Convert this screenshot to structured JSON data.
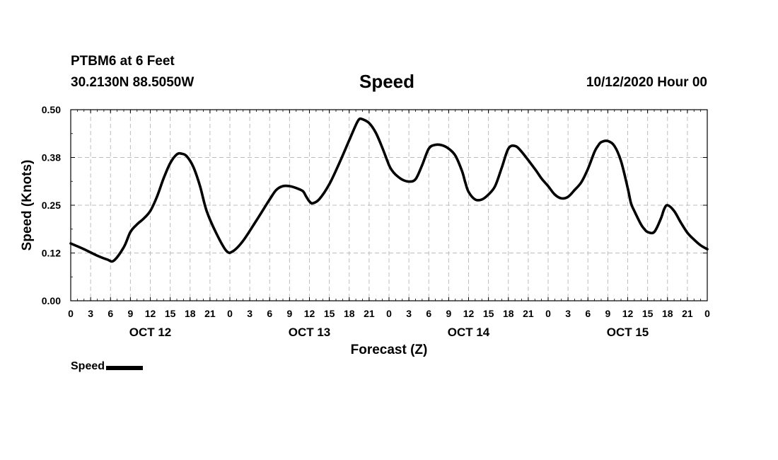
{
  "header": {
    "station": "PTBM6 at 6 Feet",
    "coords": "30.2130N 88.5050W",
    "run_time": "10/12/2020 Hour 00"
  },
  "legend": {
    "label": "Speed"
  },
  "chart_data": {
    "type": "line",
    "title": "Speed",
    "xlabel": "Forecast (Z)",
    "ylabel": "Speed (Knots)",
    "ylim": [
      0,
      0.5
    ],
    "yticks": [
      "0.00",
      "0.12",
      "0.25",
      "0.38",
      "0.50"
    ],
    "ytick_values": [
      0,
      0.125,
      0.25,
      0.375,
      0.5
    ],
    "xlim_hours": [
      0,
      96
    ],
    "xtick_labels": [
      "0",
      "3",
      "6",
      "9",
      "12",
      "15",
      "18",
      "21",
      "0",
      "3",
      "6",
      "9",
      "12",
      "15",
      "18",
      "21",
      "0",
      "3",
      "6",
      "9",
      "12",
      "15",
      "18",
      "21",
      "0",
      "3",
      "6",
      "9",
      "12",
      "15",
      "18",
      "21",
      "0"
    ],
    "date_labels": [
      {
        "label": "OCT 12",
        "hour": 12
      },
      {
        "label": "OCT 13",
        "hour": 36
      },
      {
        "label": "OCT 14",
        "hour": 60
      },
      {
        "label": "OCT 15",
        "hour": 84
      }
    ],
    "grid": true,
    "series": [
      {
        "name": "Speed",
        "color": "#000000",
        "x_hours": [
          0,
          2,
          4,
          5.5,
          6.5,
          8,
          9,
          10,
          11,
          12,
          13,
          14,
          15,
          16,
          16.7,
          17.5,
          18.5,
          19.5,
          20.5,
          22,
          23.5,
          24.5,
          26,
          28,
          30,
          31,
          32,
          33,
          34,
          35,
          35.5,
          36,
          36.5,
          37.5,
          39,
          40.5,
          42,
          43,
          43.5,
          44,
          45,
          46,
          47,
          48,
          48.5,
          49,
          50,
          51,
          52,
          53,
          54,
          55,
          56,
          57,
          58,
          59,
          59.5,
          60,
          61,
          62,
          63,
          64,
          65,
          66,
          67,
          68,
          70,
          71,
          72,
          73,
          74,
          75,
          76,
          77,
          78,
          79,
          79.5,
          80,
          81,
          82,
          83,
          84,
          84.5,
          85,
          86,
          86.5,
          87,
          88,
          89,
          89.5,
          90,
          91,
          92,
          93,
          94,
          95,
          96
        ],
        "values": [
          0.15,
          0.135,
          0.118,
          0.108,
          0.105,
          0.14,
          0.18,
          0.2,
          0.215,
          0.235,
          0.272,
          0.32,
          0.36,
          0.383,
          0.385,
          0.378,
          0.35,
          0.3,
          0.235,
          0.175,
          0.13,
          0.13,
          0.157,
          0.21,
          0.265,
          0.29,
          0.3,
          0.3,
          0.295,
          0.287,
          0.273,
          0.26,
          0.255,
          0.266,
          0.305,
          0.36,
          0.42,
          0.46,
          0.475,
          0.475,
          0.465,
          0.44,
          0.4,
          0.355,
          0.34,
          0.33,
          0.317,
          0.312,
          0.318,
          0.355,
          0.398,
          0.408,
          0.407,
          0.398,
          0.38,
          0.34,
          0.31,
          0.285,
          0.265,
          0.265,
          0.278,
          0.3,
          0.348,
          0.398,
          0.405,
          0.39,
          0.345,
          0.32,
          0.3,
          0.278,
          0.268,
          0.272,
          0.29,
          0.31,
          0.345,
          0.39,
          0.405,
          0.415,
          0.418,
          0.405,
          0.365,
          0.295,
          0.255,
          0.235,
          0.2,
          0.188,
          0.18,
          0.18,
          0.215,
          0.24,
          0.25,
          0.235,
          0.205,
          0.178,
          0.16,
          0.145,
          0.135
        ]
      }
    ]
  }
}
